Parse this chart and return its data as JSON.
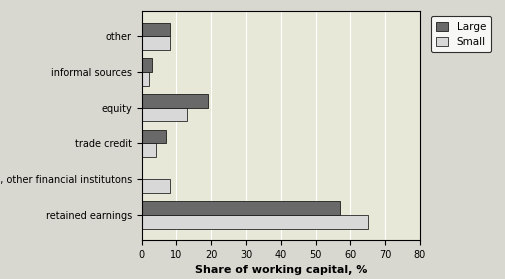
{
  "categories": [
    "retained earnings",
    "banks, other financial institutons",
    "trade credit",
    "equity",
    "informal sources",
    "other"
  ],
  "large_values": [
    57,
    0,
    7,
    19,
    3,
    8
  ],
  "small_values": [
    65,
    8,
    4,
    13,
    2,
    8
  ],
  "large_color": "#696969",
  "small_color": "#d8d8d8",
  "xlabel": "Share of working capital, %",
  "xlim": [
    0,
    80
  ],
  "xticks": [
    0,
    10,
    20,
    30,
    40,
    50,
    60,
    70,
    80
  ],
  "legend_large": "Large",
  "legend_small": "Small",
  "bar_height": 0.38,
  "plot_bg_color": "#e8e8d8",
  "fig_bg_color": "#d8d8d0",
  "ylabel_fontsize": 7,
  "xlabel_fontsize": 8
}
